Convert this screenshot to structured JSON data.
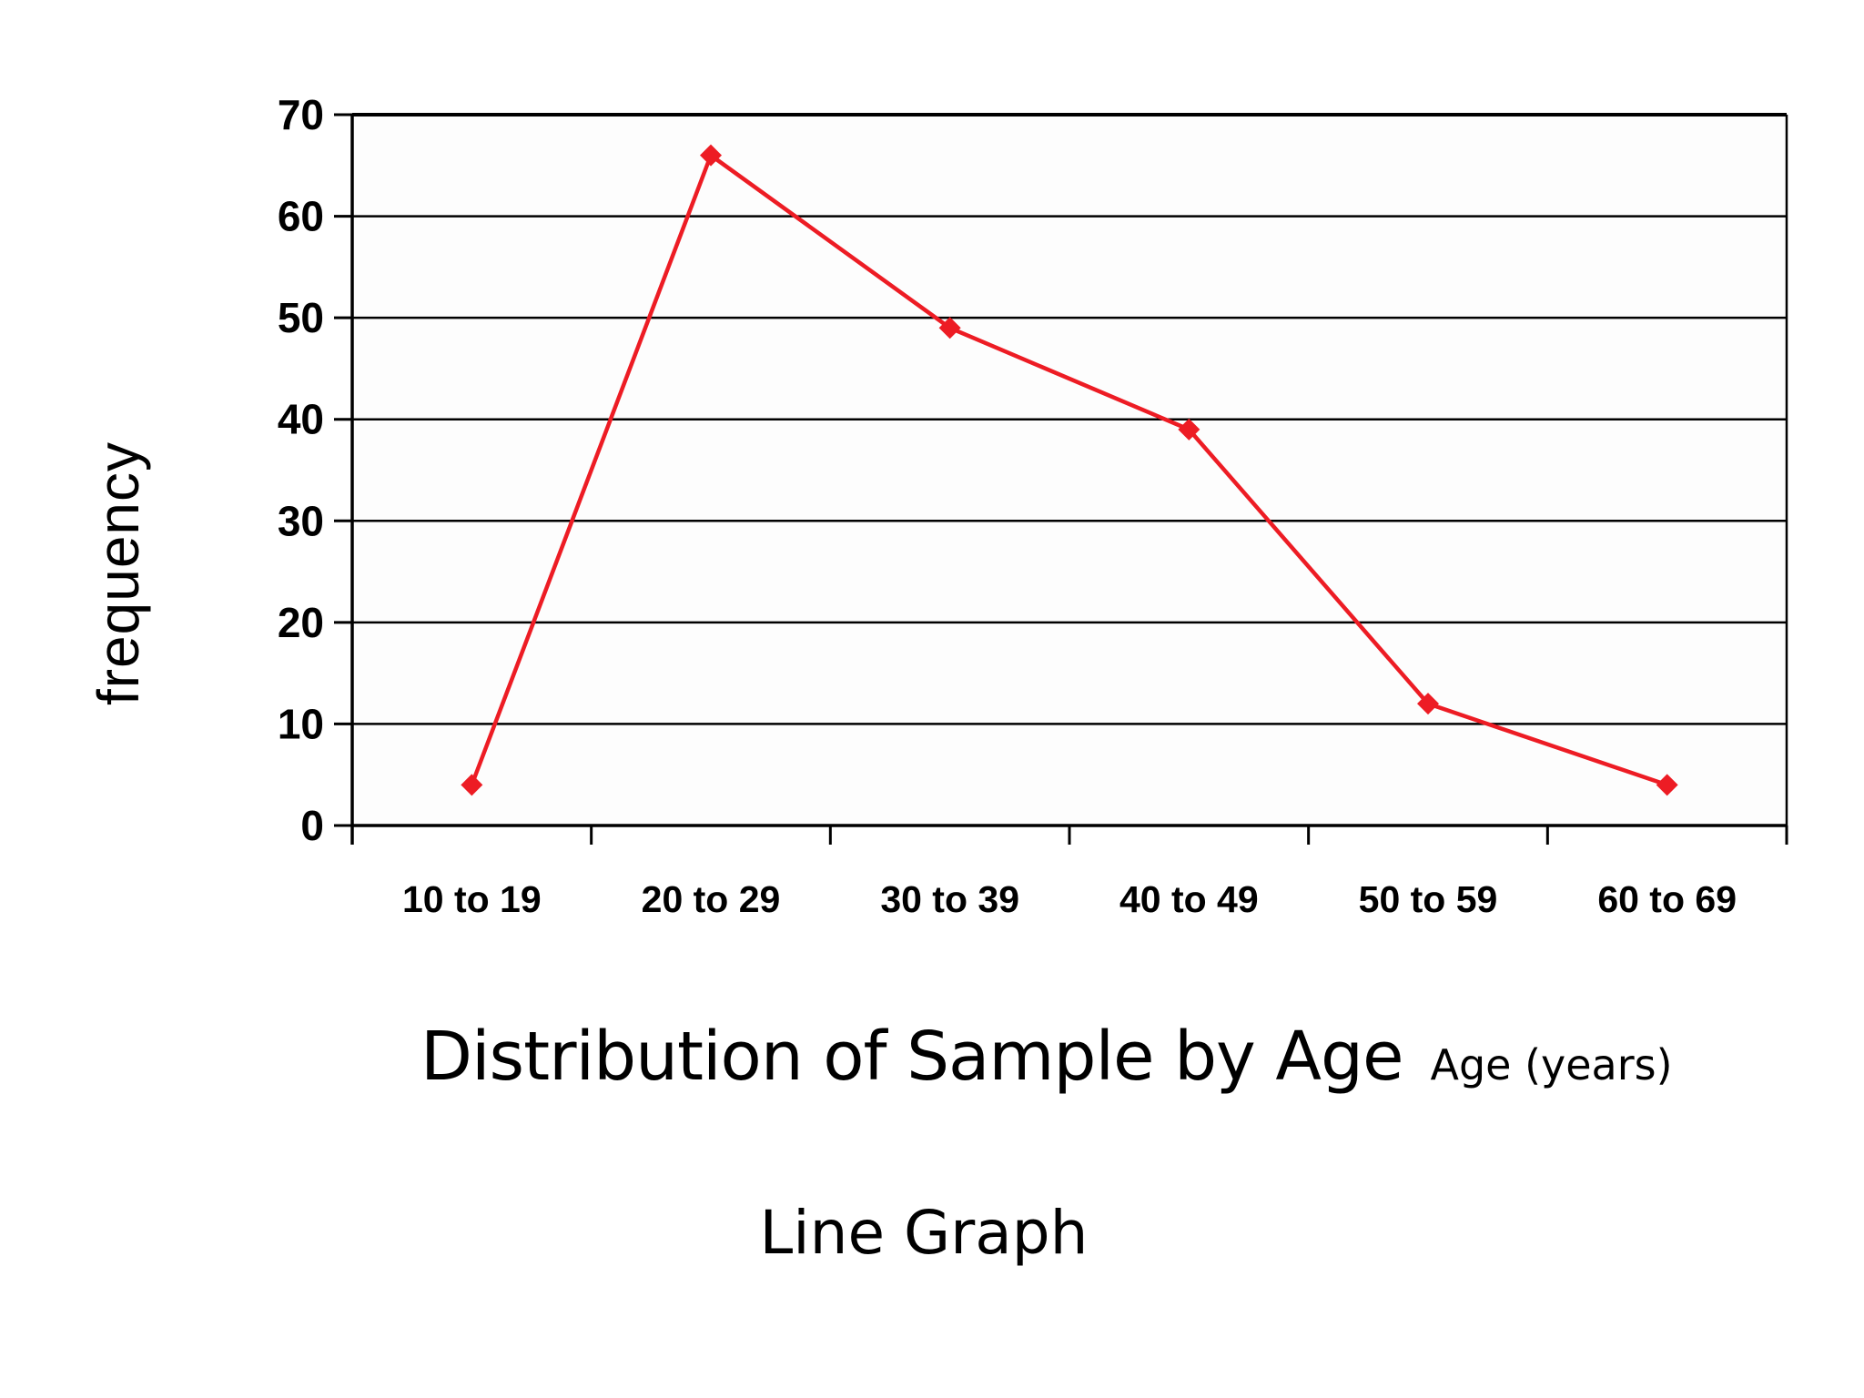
{
  "chart_data": {
    "type": "line",
    "title": "Distribution of Sample by Age",
    "title_suffix": "Age (years)",
    "caption": "Line Graph",
    "xlabel": "",
    "ylabel": "frequency",
    "categories": [
      "10 to 19",
      "20 to 29",
      "30 to 39",
      "40 to 49",
      "50 to 59",
      "60 to 69"
    ],
    "series": [
      {
        "name": "frequency",
        "values": [
          4,
          66,
          49,
          39,
          12,
          4
        ]
      }
    ],
    "ylim": [
      0,
      70
    ],
    "ytick_step": 10,
    "yticks": [
      0,
      10,
      20,
      30,
      40,
      50,
      60,
      70
    ],
    "grid": "horizontal",
    "legend": "none",
    "marker": "diamond",
    "colors": {
      "line": "#ED1C24",
      "axis": "#000000",
      "text": "#000000",
      "background": "#FFFFFF",
      "plot_fill": "#FDFDFD"
    }
  }
}
